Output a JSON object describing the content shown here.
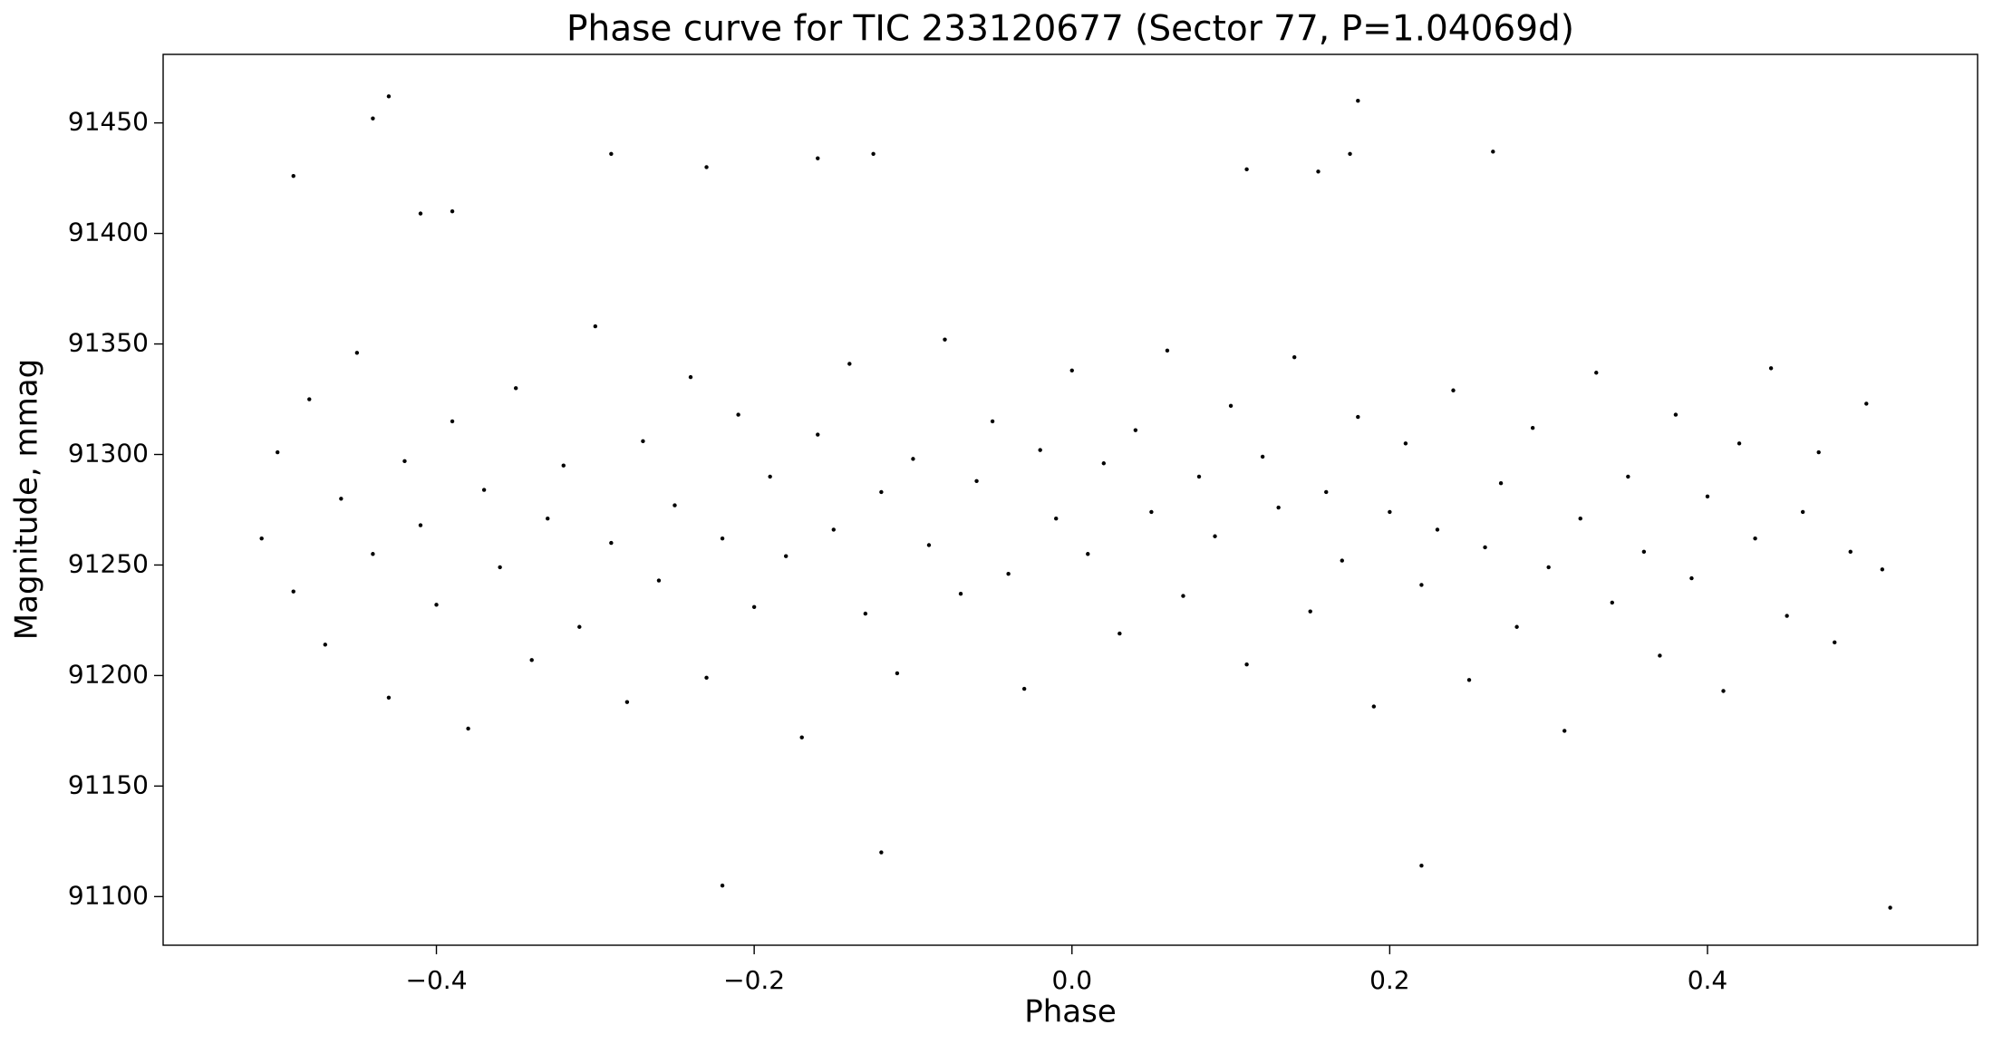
{
  "chart_data": {
    "type": "scatter",
    "title": "Phase curve for TIC 233120677 (Sector 77, P=1.04069d)",
    "x_label": "Phase",
    "y_label": "Magnitude, mmag",
    "color": "#000000",
    "xlim": [
      -0.572,
      0.57
    ],
    "ylim": [
      91078,
      91481
    ],
    "xticks": [
      {
        "value": -0.4,
        "label": "−0.4"
      },
      {
        "value": -0.2,
        "label": "−0.2"
      },
      {
        "value": 0,
        "label": "0.0"
      },
      0.2,
      0.4
    ],
    "yticks": [
      91100,
      91150,
      91200,
      91250,
      91300,
      91350,
      91400,
      91450
    ],
    "grid": false,
    "x": [
      -0.51,
      -0.5,
      -0.49,
      -0.48,
      -0.47,
      -0.46,
      -0.45,
      -0.44,
      -0.43,
      -0.42,
      -0.41,
      -0.4,
      -0.39,
      -0.38,
      -0.37,
      -0.36,
      -0.35,
      -0.34,
      -0.33,
      -0.32,
      -0.31,
      -0.3,
      -0.29,
      -0.28,
      -0.27,
      -0.26,
      -0.25,
      -0.24,
      -0.23,
      -0.22,
      -0.21,
      -0.2,
      -0.19,
      -0.18,
      -0.17,
      -0.16,
      -0.15,
      -0.14,
      -0.13,
      -0.12,
      -0.11,
      -0.1,
      -0.09,
      -0.08,
      -0.07,
      -0.06,
      -0.05,
      -0.04,
      -0.03,
      -0.02,
      -0.01,
      0.0,
      0.01,
      0.02,
      0.03,
      0.04,
      0.05,
      0.06,
      0.07,
      0.08,
      0.09,
      0.1,
      0.11,
      0.12,
      0.13,
      0.14,
      0.15,
      0.16,
      0.17,
      0.18,
      0.19,
      0.2,
      0.21,
      0.22,
      0.23,
      0.24,
      0.25,
      0.26,
      0.27,
      0.28,
      0.29,
      0.3,
      0.31,
      0.32,
      0.33,
      0.34,
      0.35,
      0.36,
      0.37,
      0.38,
      0.39,
      0.4,
      0.41,
      0.42,
      0.43,
      0.44,
      0.45,
      0.46,
      0.47,
      0.48,
      0.49,
      0.5,
      0.51,
      -0.43,
      -0.44,
      0.18,
      0.515,
      -0.22,
      -0.12,
      0.22,
      -0.49,
      -0.29,
      -0.125,
      -0.16,
      0.265,
      0.11,
      0.155,
      0.175,
      -0.23,
      -0.39,
      -0.41
    ],
    "values": [
      91262,
      91301,
      91238,
      91325,
      91214,
      91280,
      91346,
      91255,
      91190,
      91297,
      91268,
      91232,
      91315,
      91176,
      91284,
      91249,
      91330,
      91207,
      91271,
      91295,
      91222,
      91358,
      91260,
      91188,
      91306,
      91243,
      91277,
      91335,
      91199,
      91262,
      91318,
      91231,
      91290,
      91254,
      91172,
      91309,
      91266,
      91341,
      91228,
      91283,
      91201,
      91298,
      91259,
      91352,
      91237,
      91288,
      91315,
      91246,
      91194,
      91302,
      91271,
      91338,
      91255,
      91296,
      91219,
      91311,
      91274,
      91347,
      91236,
      91290,
      91263,
      91322,
      91205,
      91299,
      91276,
      91344,
      91229,
      91283,
      91252,
      91317,
      91186,
      91274,
      91305,
      91241,
      91266,
      91329,
      91198,
      91258,
      91287,
      91222,
      91312,
      91249,
      91175,
      91271,
      91337,
      91233,
      91290,
      91256,
      91209,
      91318,
      91244,
      91281,
      91193,
      91305,
      91262,
      91339,
      91227,
      91274,
      91301,
      91215,
      91256,
      91323,
      91248,
      91462,
      91452,
      91460,
      91095,
      91105,
      91120,
      91114,
      91426,
      91436,
      91436,
      91434,
      91437,
      91429,
      91428,
      91436,
      91430,
      91410,
      91409
    ]
  }
}
